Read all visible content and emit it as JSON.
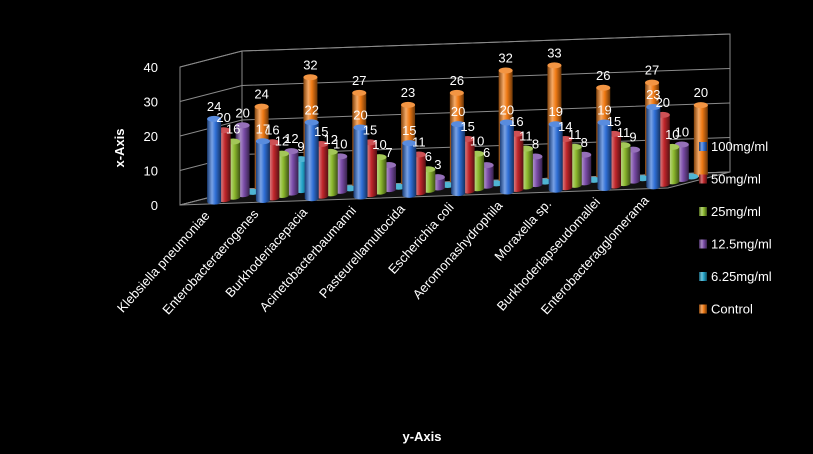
{
  "chart_data": {
    "type": "bar",
    "subtype": "3d-column",
    "background": "#000000",
    "xlabel": "y-Axis",
    "ylabel": "x-Axis",
    "ylim": [
      0,
      40
    ],
    "yticks": [
      "0",
      "10",
      "20",
      "30",
      "40"
    ],
    "grid": true,
    "legend_position": "right",
    "categories": [
      "Klebsiella pneumoniae",
      "Enterobacteraerogenes",
      "Burkhoderiacepacia",
      "Acinetobacterbaumanni",
      "Pasteurellamultocida",
      "Escherichia coli",
      "Aeromonashydrophila",
      "Moraxella sp.",
      "Burkhoderiapseudomallei",
      "Enterobacteragglomerama"
    ],
    "series": [
      {
        "name": "100mg/ml",
        "color": "#2F6FD6",
        "values": [
          24,
          17,
          22,
          20,
          15,
          20,
          20,
          19,
          19,
          23
        ]
      },
      {
        "name": "50mg/ml",
        "color": "#C0262B",
        "values": [
          20,
          16,
          15,
          15,
          11,
          15,
          16,
          14,
          15,
          20
        ]
      },
      {
        "name": "25mg/ml",
        "color": "#8CB92E",
        "values": [
          16,
          12,
          12,
          10,
          6,
          10,
          11,
          11,
          11,
          10
        ]
      },
      {
        "name": "12.5mg/ml",
        "color": "#7A4CA8",
        "values": [
          20,
          12,
          10,
          7,
          3,
          6,
          8,
          8,
          9,
          10
        ]
      },
      {
        "name": "6.25mg/ml",
        "color": "#23A3C8",
        "values": [
          0,
          9,
          0,
          0,
          0,
          0,
          0,
          0,
          0,
          0
        ]
      },
      {
        "name": "Control",
        "color": "#F07A14",
        "values": [
          24,
          32,
          27,
          23,
          26,
          32,
          33,
          26,
          27,
          20
        ]
      }
    ]
  }
}
